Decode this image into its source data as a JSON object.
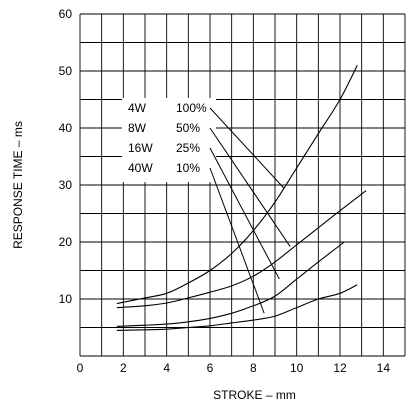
{
  "chart_data": {
    "type": "line",
    "xlabel": "STROKE – mm",
    "ylabel": "RESPONSE TIME – ms",
    "xlim": [
      0,
      15
    ],
    "ylim": [
      0,
      60
    ],
    "x_ticks": [
      0,
      2,
      4,
      6,
      8,
      10,
      12,
      14
    ],
    "y_ticks": [
      10,
      20,
      30,
      40,
      50,
      60
    ],
    "grid": true,
    "legend": [
      {
        "power": "4W",
        "duty": "100%",
        "target_x": 9.4,
        "target_y": 29.5
      },
      {
        "power": "8W",
        "duty": "50%",
        "target_x": 9.7,
        "target_y": 19.2
      },
      {
        "power": "16W",
        "duty": "25%",
        "target_x": 9.2,
        "target_y": 13.5
      },
      {
        "power": "40W",
        "duty": "10%",
        "target_x": 8.5,
        "target_y": 7.5
      }
    ],
    "series": [
      {
        "x": [
          1.7,
          3,
          4,
          5,
          6,
          7,
          8,
          9,
          10,
          11,
          12,
          12.8
        ],
        "y": [
          9.2,
          10.2,
          11,
          12.8,
          15,
          18,
          22,
          27,
          33,
          39,
          45,
          51
        ]
      },
      {
        "x": [
          1.7,
          3,
          4,
          5,
          6,
          7,
          8,
          9,
          10,
          11,
          12,
          13.2
        ],
        "y": [
          8.5,
          8.8,
          9.3,
          10.2,
          11.2,
          12.3,
          14,
          16.5,
          19.5,
          22.5,
          25.5,
          29
        ]
      },
      {
        "x": [
          1.7,
          3,
          4,
          5,
          6,
          7,
          8,
          9,
          10,
          11,
          12.2
        ],
        "y": [
          5.2,
          5.4,
          5.6,
          6,
          6.6,
          7.5,
          8.8,
          10.5,
          13.5,
          16.5,
          20
        ]
      },
      {
        "x": [
          1.7,
          3,
          4,
          5,
          6,
          7,
          8,
          9,
          10,
          11,
          12,
          12.8
        ],
        "y": [
          4.5,
          4.6,
          4.7,
          5,
          5.3,
          5.8,
          6.3,
          7,
          8.5,
          10,
          11,
          12.5
        ]
      }
    ]
  }
}
